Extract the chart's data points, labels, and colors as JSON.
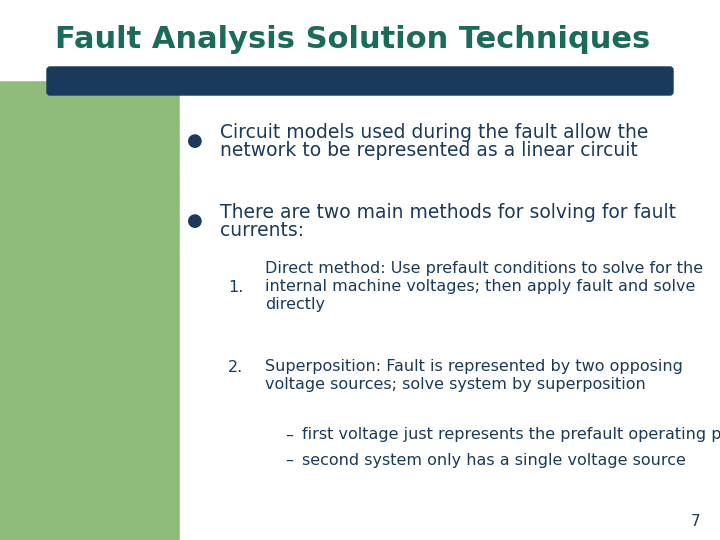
{
  "title": "Fault Analysis Solution Techniques",
  "title_color": "#1a6b5a",
  "title_fontsize": 22,
  "bg_color": "#ffffff",
  "left_bar_color": "#8fbc7a",
  "left_bar_width": 0.25,
  "header_bar_color": "#1a3a5c",
  "text_color": "#1a3a5c",
  "bullet_color": "#1a3a5c",
  "bullet1_line1": "Circuit models used during the fault allow the",
  "bullet1_line2": "network to be represented as a linear circuit",
  "bullet2_line1": "There are two main methods for solving for fault",
  "bullet2_line2": "currents:",
  "item1_label": "1.",
  "item1_line1": "Direct method: Use prefault conditions to solve for the",
  "item1_line2": "internal machine voltages; then apply fault and solve",
  "item1_line3": "directly",
  "item2_label": "2.",
  "item2_line1": "Superposition: Fault is represented by two opposing",
  "item2_line2": "voltage sources; solve system by superposition",
  "sub1": "first voltage just represents the prefault operating point",
  "sub2": "second system only has a single voltage source",
  "page_number": "7",
  "font_family": "DejaVu Sans"
}
